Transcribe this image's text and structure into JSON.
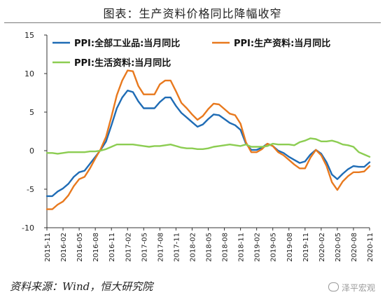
{
  "title": "图表：生产资料价格同比降幅收窄",
  "source": "资料来源：Wind，恒大研究院",
  "watermark": "泽平宏观",
  "chart_data": {
    "type": "line",
    "ylim": [
      -10,
      15
    ],
    "yticks": [
      -10,
      -5,
      0,
      5,
      10,
      15
    ],
    "grid": false,
    "legend_position": "top",
    "x": [
      "2015-11",
      "2015-12",
      "2016-01",
      "2016-02",
      "2016-03",
      "2016-04",
      "2016-05",
      "2016-06",
      "2016-07",
      "2016-08",
      "2016-09",
      "2016-10",
      "2016-11",
      "2016-12",
      "2017-01",
      "2017-02",
      "2017-03",
      "2017-04",
      "2017-05",
      "2017-06",
      "2017-07",
      "2017-08",
      "2017-09",
      "2017-10",
      "2017-11",
      "2017-12",
      "2018-01",
      "2018-02",
      "2018-03",
      "2018-04",
      "2018-05",
      "2018-06",
      "2018-07",
      "2018-08",
      "2018-09",
      "2018-10",
      "2018-11",
      "2018-12",
      "2019-01",
      "2019-02",
      "2019-03",
      "2019-04",
      "2019-05",
      "2019-06",
      "2019-07",
      "2019-08",
      "2019-09",
      "2019-10",
      "2019-11",
      "2019-12",
      "2020-01",
      "2020-02",
      "2020-03",
      "2020-04",
      "2020-05",
      "2020-06",
      "2020-07",
      "2020-08",
      "2020-09",
      "2020-10",
      "2020-11"
    ],
    "xtick_labels": [
      "2015-11",
      "2016-02",
      "2016-05",
      "2016-08",
      "2016-11",
      "2017-02",
      "2017-05",
      "2017-08",
      "2017-11",
      "2018-02",
      "2018-05",
      "2018-08",
      "2018-11",
      "2019-02",
      "2019-05",
      "2019-08",
      "2019-11",
      "2020-02",
      "2020-05",
      "2020-08",
      "2020-11"
    ],
    "series": [
      {
        "name": "PPI:全部工业品:当月同比",
        "color": "#1f6cb5",
        "values": [
          -5.9,
          -5.9,
          -5.3,
          -4.9,
          -4.3,
          -3.4,
          -2.8,
          -2.6,
          -1.7,
          -0.8,
          0.1,
          1.2,
          3.3,
          5.5,
          6.9,
          7.8,
          7.6,
          6.4,
          5.5,
          5.5,
          5.5,
          6.3,
          6.9,
          6.9,
          5.8,
          4.9,
          4.3,
          3.7,
          3.1,
          3.4,
          4.1,
          4.7,
          4.6,
          4.1,
          3.6,
          3.3,
          2.7,
          0.9,
          0.1,
          0.1,
          0.4,
          0.9,
          0.6,
          0.0,
          -0.3,
          -0.8,
          -1.2,
          -1.6,
          -1.4,
          -0.5,
          0.1,
          -0.4,
          -1.5,
          -3.1,
          -3.7,
          -3.0,
          -2.4,
          -2.0,
          -2.1,
          -2.1,
          -1.5
        ]
      },
      {
        "name": "PPI:生产资料:当月同比",
        "color": "#e8791e",
        "values": [
          -7.6,
          -7.6,
          -7.0,
          -6.6,
          -5.8,
          -4.6,
          -3.7,
          -3.4,
          -2.3,
          -1.0,
          0.2,
          1.8,
          4.4,
          7.2,
          9.1,
          10.4,
          10.3,
          8.4,
          7.3,
          7.3,
          7.3,
          8.6,
          9.1,
          9.1,
          7.7,
          6.2,
          5.5,
          4.7,
          4.0,
          4.5,
          5.4,
          6.1,
          6.0,
          5.4,
          4.8,
          4.6,
          3.5,
          1.1,
          -0.2,
          -0.2,
          0.2,
          0.9,
          0.6,
          -0.2,
          -0.6,
          -1.2,
          -1.8,
          -2.3,
          -2.3,
          -0.9,
          0.1,
          -0.6,
          -2.0,
          -4.1,
          -5.1,
          -4.0,
          -3.3,
          -2.8,
          -2.8,
          -2.7,
          -2.0
        ]
      },
      {
        "name": "PPI:生活资料:当月同比",
        "color": "#8ccd52",
        "values": [
          -0.3,
          -0.3,
          -0.4,
          -0.3,
          -0.2,
          -0.2,
          -0.2,
          -0.2,
          -0.1,
          -0.1,
          0.0,
          0.2,
          0.5,
          0.8,
          0.8,
          0.8,
          0.8,
          0.7,
          0.6,
          0.5,
          0.6,
          0.6,
          0.7,
          0.8,
          0.6,
          0.4,
          0.3,
          0.3,
          0.2,
          0.2,
          0.3,
          0.5,
          0.6,
          0.7,
          0.8,
          0.7,
          0.6,
          0.8,
          0.5,
          0.5,
          0.5,
          0.6,
          0.9,
          0.8,
          0.8,
          0.8,
          0.7,
          1.1,
          1.3,
          1.6,
          1.5,
          1.2,
          1.2,
          1.3,
          1.1,
          0.8,
          0.7,
          0.5,
          -0.2,
          -0.5,
          -0.8
        ]
      }
    ]
  }
}
